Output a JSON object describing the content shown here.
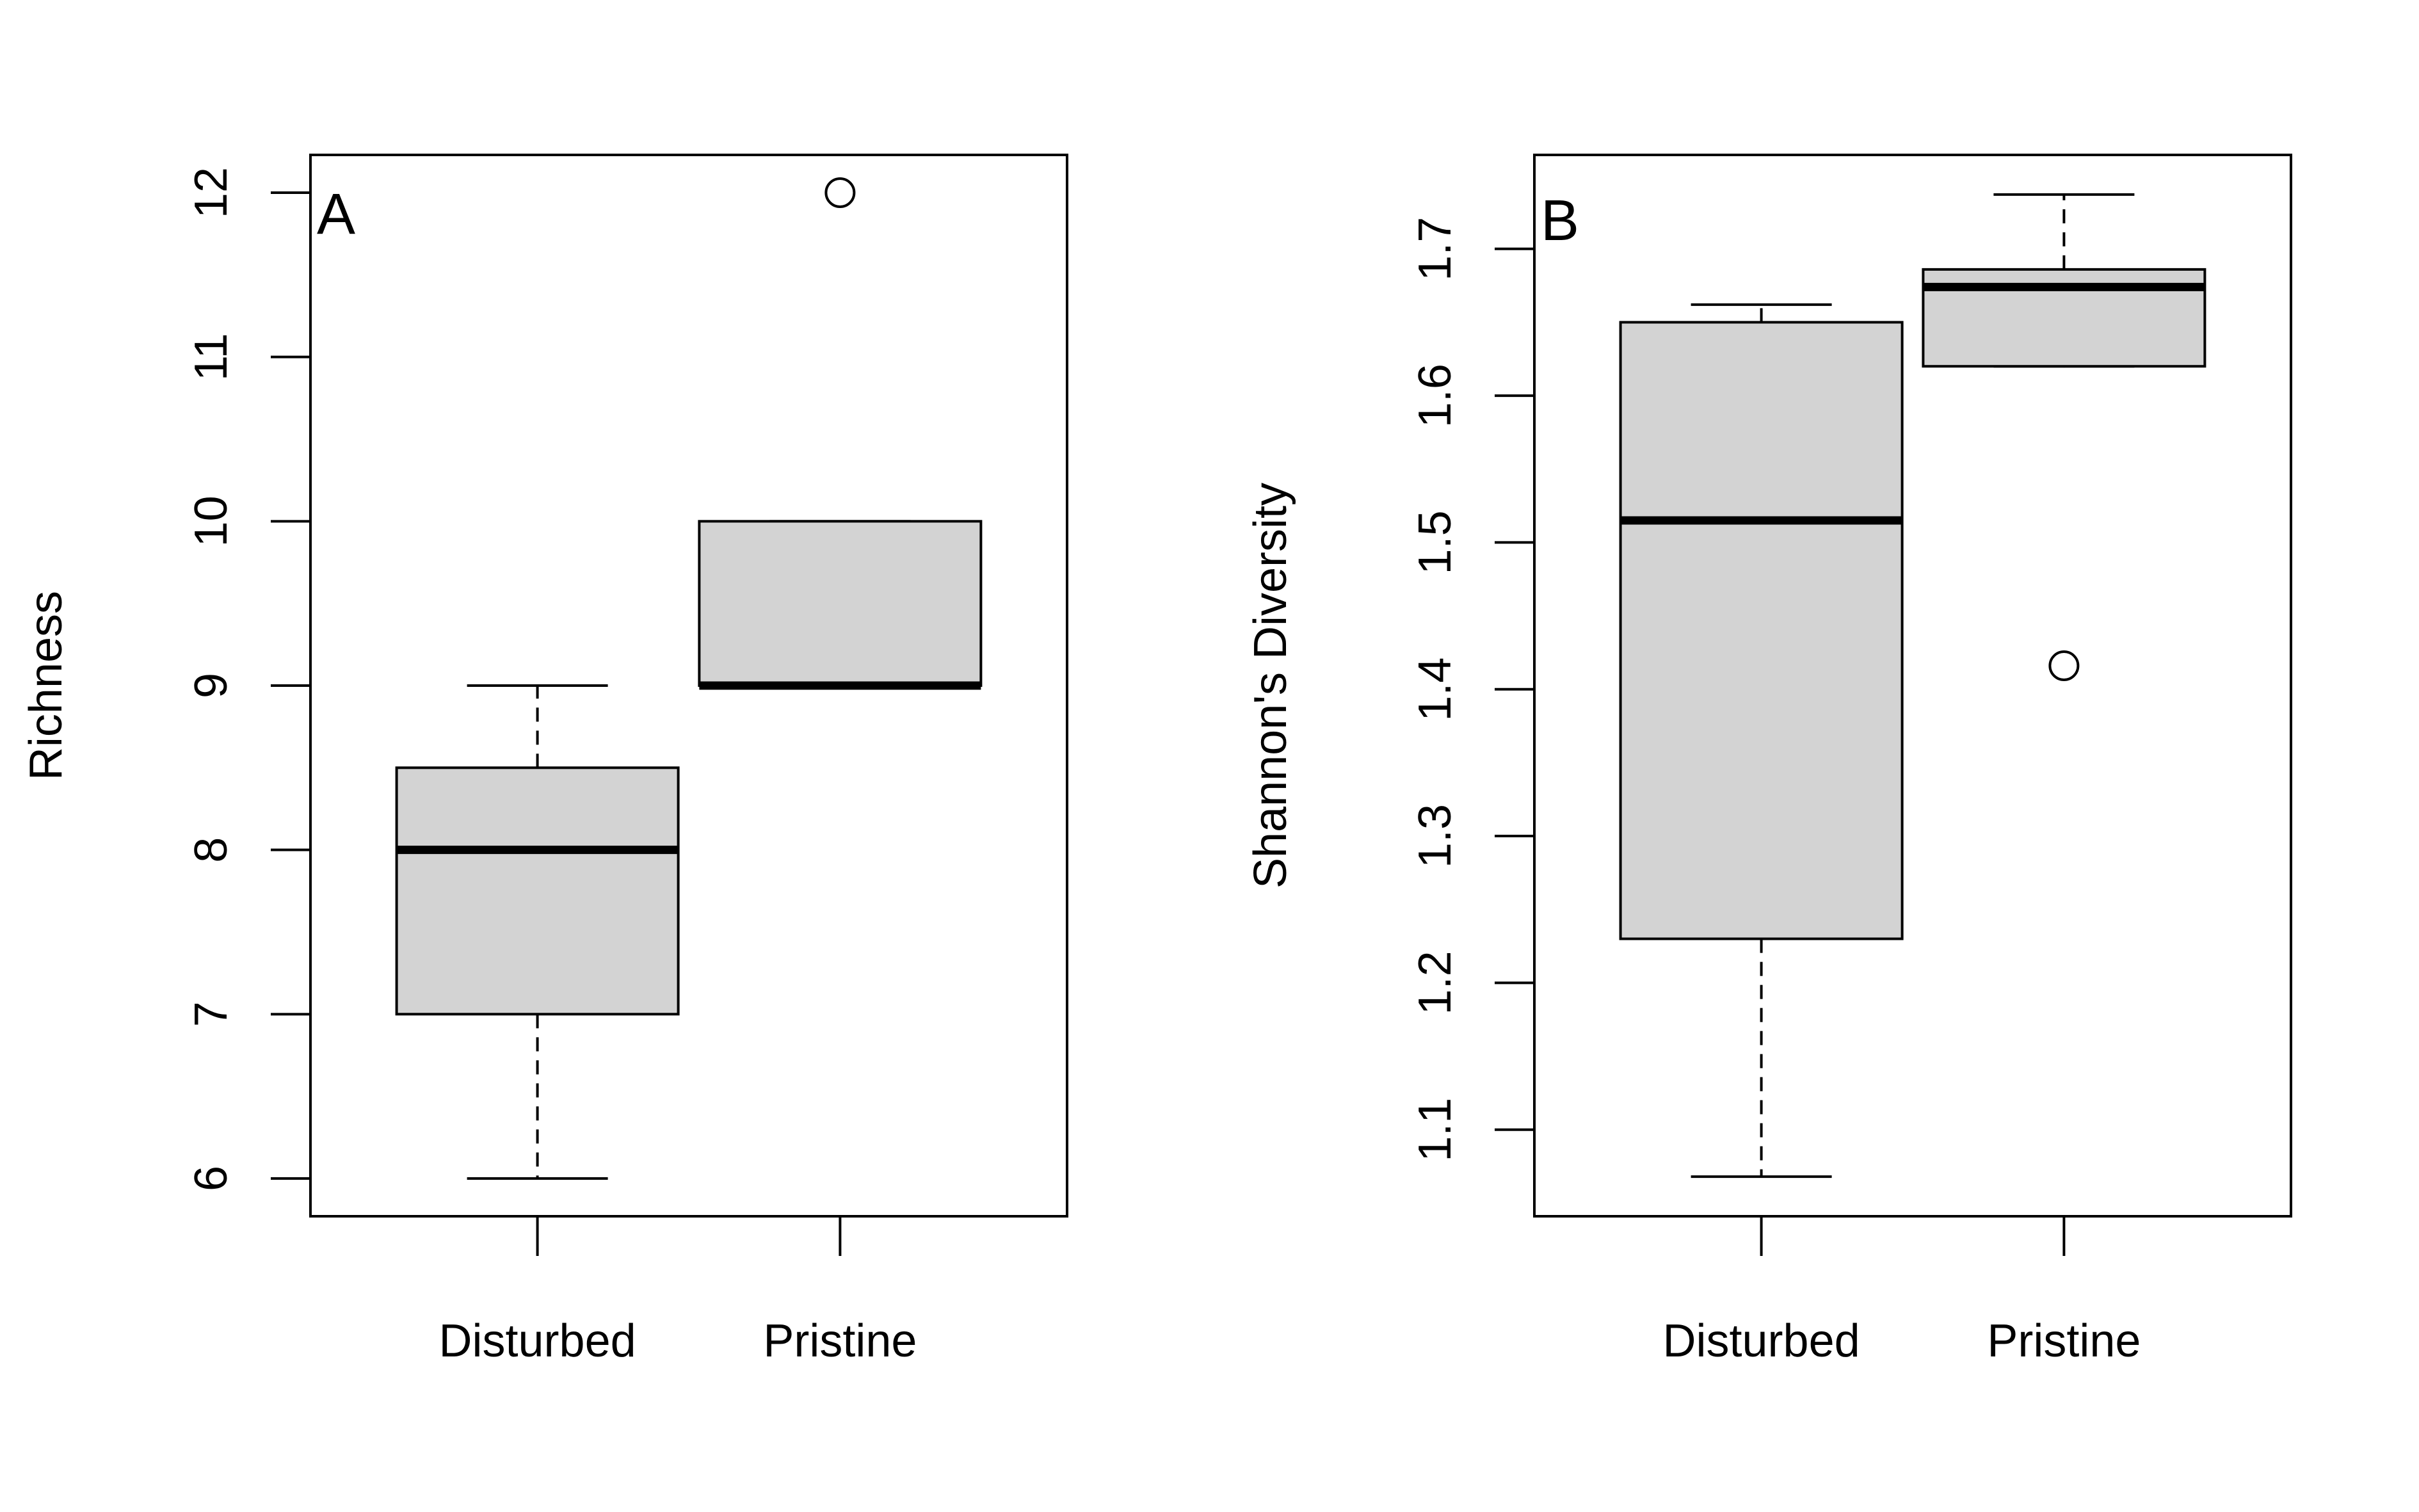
{
  "chart_data": [
    {
      "type": "boxplot",
      "panel_label": "A",
      "title": "",
      "xlabel": "",
      "ylabel": "Richness",
      "categories": [
        "Disturbed",
        "Pristine"
      ],
      "ylim": [
        5.77,
        12.23
      ],
      "yticks": [
        6,
        7,
        8,
        9,
        10,
        11,
        12
      ],
      "boxes": [
        {
          "category": "Disturbed",
          "whisker_low": 6,
          "q1": 7,
          "median": 8,
          "q3": 8.5,
          "whisker_high": 9,
          "outliers": []
        },
        {
          "category": "Pristine",
          "whisker_low": 9,
          "q1": 9,
          "median": 9,
          "q3": 10,
          "whisker_high": 10,
          "outliers": [
            12
          ]
        }
      ],
      "box_color": "#d3d3d3",
      "grid": false,
      "legend": "none"
    },
    {
      "type": "boxplot",
      "panel_label": "B",
      "title": "",
      "xlabel": "",
      "ylabel": "Shannon's Diversity",
      "categories": [
        "Disturbed",
        "Pristine"
      ],
      "ylim": [
        1.041,
        1.764
      ],
      "yticks": [
        1.1,
        1.2,
        1.3,
        1.4,
        1.5,
        1.6,
        1.7
      ],
      "ytick_labels": [
        "1.1",
        "1.2",
        "1.3",
        "1.4",
        "1.5",
        "1.6",
        "1.7"
      ],
      "boxes": [
        {
          "category": "Disturbed",
          "whisker_low": 1.068,
          "q1": 1.23,
          "median": 1.515,
          "q3": 1.65,
          "whisker_high": 1.662,
          "outliers": []
        },
        {
          "category": "Pristine",
          "whisker_low": 1.62,
          "q1": 1.62,
          "median": 1.674,
          "q3": 1.686,
          "whisker_high": 1.737,
          "outliers": [
            1.416
          ]
        }
      ],
      "box_color": "#d3d3d3",
      "grid": false,
      "legend": "none"
    }
  ]
}
